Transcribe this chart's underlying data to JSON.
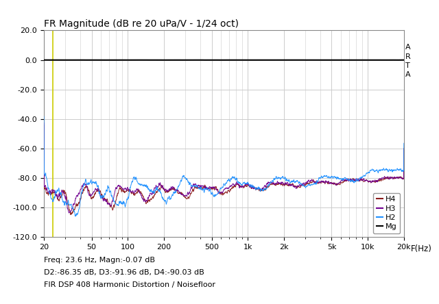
{
  "title": "FR Magnitude (dB re 20 uPa/V - 1/24 oct)",
  "xlabel": "F(Hz)",
  "ylabel": "",
  "xlim": [
    20,
    20000
  ],
  "ylim": [
    -120,
    20
  ],
  "yticks": [
    20.0,
    0.0,
    -20.0,
    -40.0,
    -60.0,
    -80.0,
    -100.0,
    -120.0
  ],
  "xtick_labels": [
    "20",
    "50",
    "100",
    "200",
    "500",
    "1k",
    "2k",
    "5k",
    "10k",
    "20k"
  ],
  "xtick_values": [
    20,
    50,
    100,
    200,
    500,
    1000,
    2000,
    5000,
    10000,
    20000
  ],
  "color_H4": "#8B1A1A",
  "color_H3": "#700090",
  "color_H2": "#1E90FF",
  "color_Mg": "#000000",
  "color_vline": "#CCCC00",
  "vline_x": 23.6,
  "arta_label": "A\nR\nT\nA",
  "annotation_line1": "Freq: 23.6 Hz, Magn:-0.07 dB",
  "annotation_line2": "D2:-86.35 dB, D3:-91.96 dB, D4:-90.03 dB",
  "annotation_line3": "FIR DSP 408 Harmonic Distortion / Noisefloor",
  "background_color": "#FFFFFF",
  "grid_color": "#CCCCCC",
  "title_fontsize": 10,
  "legend_fontsize": 8,
  "annotation_fontsize": 8
}
